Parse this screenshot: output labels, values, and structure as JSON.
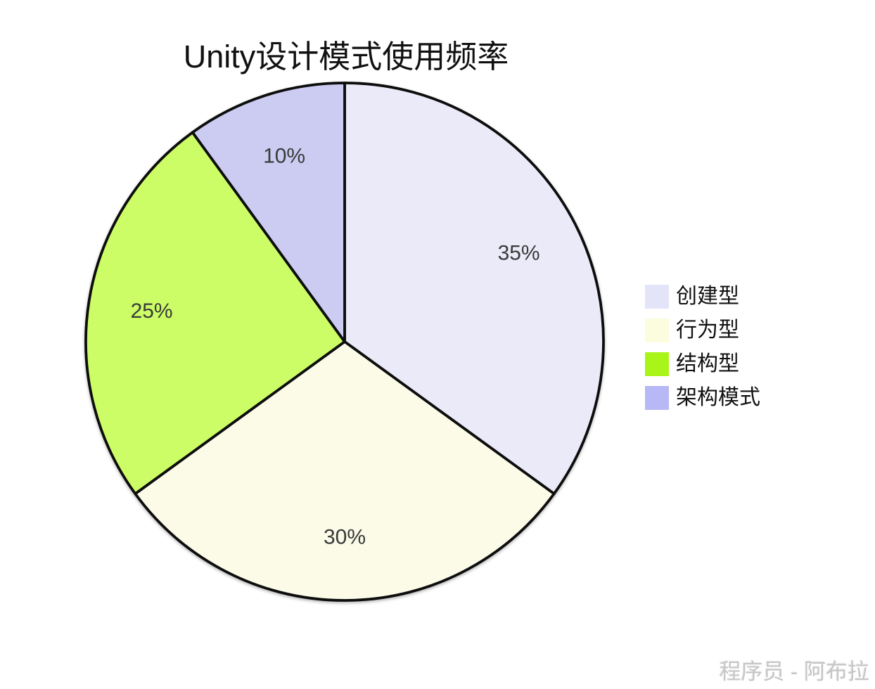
{
  "chart": {
    "title": "Unity设计模式使用频率",
    "watermark": "程序员 - 阿布拉"
  },
  "chart_data": {
    "type": "pie",
    "title": "Unity设计模式使用频率",
    "categories": [
      "创建型",
      "行为型",
      "结构型",
      "架构模式"
    ],
    "values": [
      35,
      30,
      25,
      10
    ],
    "slice_labels": [
      "35%",
      "30%",
      "25%",
      "10%"
    ],
    "unit": "%",
    "start_angle": "top",
    "direction": "clockwise",
    "slice_colors": [
      "#EAEAF8",
      "#FBFBE8",
      "#CCFD66",
      "#CCCCF2"
    ],
    "legend_colors": [
      "#E4E4F8",
      "#FCFCDE",
      "#AAF519",
      "#B8B8F6"
    ],
    "stroke_color": "#0d0d0d",
    "label_color": "#3a3a3a",
    "legend_position": "right",
    "legend_labels": [
      "创建型",
      "行为型",
      "结构型",
      "架构模式"
    ],
    "background": "#ffffff"
  }
}
